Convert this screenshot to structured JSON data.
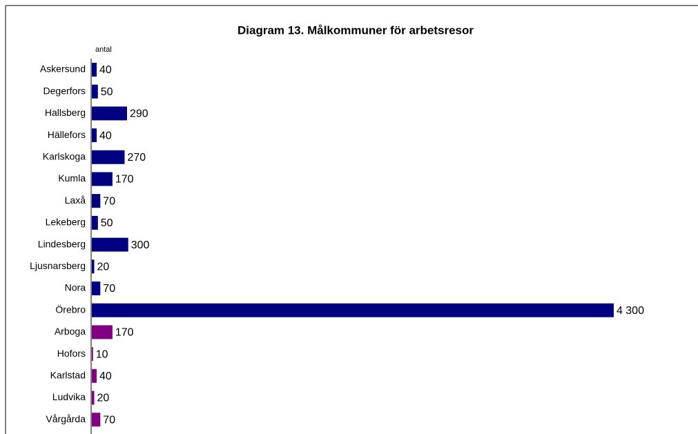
{
  "chart_data": {
    "type": "bar",
    "orientation": "horizontal",
    "title": "Diagram 13. Målkommuner för arbetsresor",
    "x_label": "antal",
    "categories": [
      "Askersund",
      "Degerfors",
      "Hallsberg",
      "Hällefors",
      "Karlskoga",
      "Kumla",
      "Laxå",
      "Lekeberg",
      "Lindesberg",
      "Ljusnarsberg",
      "Nora",
      "Örebro",
      "Arboga",
      "Hofors",
      "Karlstad",
      "Ludvika",
      "Vårgårda"
    ],
    "values": [
      40,
      50,
      290,
      40,
      270,
      170,
      70,
      50,
      300,
      20,
      70,
      4300,
      170,
      10,
      40,
      20,
      70
    ],
    "value_labels": [
      "40",
      "50",
      "290",
      "40",
      "270",
      "170",
      "70",
      "50",
      "300",
      "20",
      "70",
      "4 300",
      "170",
      "10",
      "40",
      "20",
      "70"
    ],
    "colors": [
      "#000080",
      "#000080",
      "#000080",
      "#000080",
      "#000080",
      "#000080",
      "#000080",
      "#000080",
      "#000080",
      "#000080",
      "#000080",
      "#000080",
      "#800080",
      "#800080",
      "#800080",
      "#800080",
      "#800080"
    ],
    "xlim": [
      0,
      5000
    ]
  }
}
